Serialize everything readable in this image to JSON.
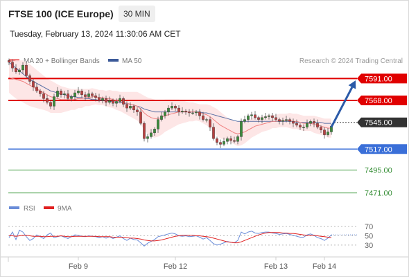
{
  "header": {
    "title": "FTSE 100 (ICE Europe)",
    "timeframe": "30 MIN",
    "timestamp": "Tuesday, February 13, 2024 11:30:06 AM CET"
  },
  "legend": {
    "items": [
      {
        "label": "MA 20 + Bollinger Bands",
        "color": "#f08080"
      },
      {
        "label": "MA 50",
        "color": "#3c5a99"
      }
    ],
    "attribution": "Research © 2024 Trading Central"
  },
  "rsi_legend": {
    "items": [
      {
        "label": "RSI",
        "color": "#6a8cd8"
      },
      {
        "label": "9MA",
        "color": "#e02020"
      }
    ]
  },
  "chart_data": [
    {
      "type": "candlestick",
      "ylim": [
        7462,
        7600
      ],
      "x_ticks": [
        {
          "label": "Feb 9",
          "index": 20
        },
        {
          "label": "Feb 12",
          "index": 48
        },
        {
          "label": "Feb 13",
          "index": 77
        },
        {
          "label": "Feb 14",
          "index": 91
        }
      ],
      "levels": [
        {
          "value": 7591.0,
          "label": "7591.00",
          "color": "#e00000",
          "style": "resistance"
        },
        {
          "value": 7568.0,
          "label": "7568.00",
          "color": "#e00000",
          "style": "resistance"
        },
        {
          "value": 7545.0,
          "label": "7545.00",
          "color": "#333333",
          "style": "last"
        },
        {
          "value": 7517.0,
          "label": "7517.00",
          "color": "#3a6fd8",
          "style": "pivot"
        },
        {
          "value": 7495.0,
          "label": "7495.00",
          "color": "#3c9a3c",
          "style": "support"
        },
        {
          "value": 7471.0,
          "label": "7471.00",
          "color": "#3c9a3c",
          "style": "support"
        }
      ],
      "projection": {
        "from": [
          93,
          7540
        ],
        "to": [
          100,
          7589
        ]
      },
      "price": [
        7608,
        7602,
        7598,
        7600,
        7605,
        7594,
        7588,
        7582,
        7578,
        7575,
        7570,
        7566,
        7562,
        7572,
        7578,
        7574,
        7575,
        7570,
        7572,
        7576,
        7578,
        7574,
        7572,
        7575,
        7573,
        7571,
        7568,
        7570,
        7566,
        7568,
        7565,
        7567,
        7570,
        7564,
        7560,
        7562,
        7558,
        7556,
        7544,
        7528,
        7530,
        7534,
        7538,
        7548,
        7552,
        7556,
        7560,
        7562,
        7560,
        7556,
        7557,
        7556,
        7555,
        7555,
        7556,
        7552,
        7548,
        7548,
        7540,
        7528,
        7524,
        7522,
        7525,
        7528,
        7526,
        7525,
        7530,
        7546,
        7548,
        7552,
        7553,
        7550,
        7548,
        7550,
        7551,
        7552,
        7550,
        7548,
        7546,
        7547,
        7548,
        7546,
        7544,
        7542,
        7540,
        7540,
        7544,
        7546,
        7544,
        7540,
        7537,
        7532,
        7535,
        7541
      ],
      "ma20": [
        7592,
        7591,
        7590,
        7589,
        7588,
        7586,
        7584,
        7582,
        7580,
        7578,
        7576,
        7574,
        7572,
        7571,
        7570,
        7569,
        7569,
        7569,
        7569,
        7569,
        7570,
        7570,
        7571,
        7571,
        7572,
        7572,
        7571,
        7571,
        7570,
        7570,
        7569,
        7568,
        7567,
        7566,
        7565,
        7564,
        7563,
        7562,
        7559,
        7555,
        7552,
        7550,
        7549,
        7549,
        7550,
        7552,
        7553,
        7554,
        7555,
        7556,
        7556,
        7556,
        7556,
        7556,
        7556,
        7555,
        7554,
        7553,
        7551,
        7548,
        7545,
        7542,
        7540,
        7538,
        7536,
        7534,
        7533,
        7534,
        7535,
        7537,
        7539,
        7541,
        7542,
        7543,
        7544,
        7545,
        7546,
        7546,
        7547,
        7547,
        7547,
        7547,
        7546,
        7546,
        7545,
        7544,
        7544,
        7544,
        7543,
        7542,
        7541,
        7540,
        7539,
        7539
      ],
      "ma50": [
        7608,
        7605,
        7602,
        7599,
        7596,
        7593,
        7590,
        7588,
        7586,
        7584,
        7582,
        7580,
        7578,
        7577,
        7576,
        7575,
        7574,
        7573,
        7572,
        7572,
        7571,
        7571,
        7570,
        7570,
        7569,
        7569,
        7568,
        7568,
        7568,
        7567,
        7567,
        7566,
        7566,
        7565,
        7565,
        7564,
        7563,
        7562,
        7561,
        7559,
        7558,
        7557,
        7556,
        7556,
        7556,
        7556,
        7556,
        7556,
        7556,
        7556,
        7556,
        7556,
        7556,
        7556,
        7556,
        7556,
        7555,
        7555,
        7554,
        7553,
        7552,
        7551,
        7550,
        7549,
        7548,
        7547,
        7546,
        7546,
        7546,
        7546,
        7546,
        7546,
        7546,
        7546,
        7546,
        7546,
        7546,
        7546,
        7546,
        7546,
        7546,
        7546,
        7546,
        7545,
        7545,
        7545,
        7545,
        7545,
        7545,
        7545,
        7545,
        7544,
        7544,
        7544
      ],
      "bb_width": [
        16,
        18,
        20,
        21,
        22,
        22,
        22,
        21,
        20,
        19,
        18,
        17,
        17,
        16,
        15,
        14,
        13,
        12,
        11,
        11,
        10,
        10,
        9,
        9,
        9,
        8,
        8,
        8,
        8,
        9,
        9,
        10,
        10,
        11,
        12,
        13,
        14,
        15,
        16,
        18,
        19,
        20,
        20,
        19,
        18,
        17,
        16,
        15,
        14,
        13,
        12,
        11,
        10,
        10,
        9,
        9,
        10,
        11,
        12,
        13,
        14,
        14,
        13,
        12,
        12,
        12,
        13,
        13,
        12,
        11,
        10,
        10,
        9,
        8,
        8,
        8,
        7,
        7,
        7,
        7,
        7,
        8,
        8,
        8,
        8,
        8,
        8,
        8,
        9,
        9,
        9,
        9,
        10,
        10
      ]
    },
    {
      "type": "line",
      "series_name": "RSI",
      "ylim": [
        15,
        85
      ],
      "y_ticks": [
        70,
        50,
        30
      ],
      "rsi": [
        46,
        58,
        42,
        62,
        58,
        48,
        40,
        44,
        52,
        48,
        44,
        52,
        56,
        46,
        48,
        50,
        47,
        44,
        48,
        52,
        51,
        49,
        48,
        50,
        49,
        48,
        46,
        48,
        45,
        48,
        44,
        47,
        50,
        44,
        40,
        45,
        42,
        41,
        35,
        28,
        34,
        38,
        42,
        48,
        50,
        52,
        54,
        56,
        54,
        50,
        49,
        50,
        48,
        49,
        50,
        47,
        43,
        46,
        40,
        33,
        30,
        32,
        35,
        38,
        36,
        35,
        40,
        58,
        54,
        58,
        60,
        56,
        55,
        57,
        58,
        58,
        56,
        55,
        53,
        54,
        55,
        53,
        51,
        49,
        47,
        47,
        52,
        54,
        51,
        46,
        44,
        40,
        45,
        52
      ],
      "ma9": [
        50,
        50,
        49,
        50,
        51,
        51,
        50,
        49,
        49,
        49,
        48,
        48,
        49,
        49,
        49,
        50,
        49,
        48,
        48,
        49,
        49,
        49,
        49,
        49,
        49,
        49,
        48,
        48,
        48,
        48,
        47,
        47,
        47,
        47,
        46,
        45,
        45,
        44,
        43,
        41,
        40,
        39,
        39,
        40,
        41,
        43,
        45,
        47,
        49,
        50,
        51,
        51,
        51,
        51,
        50,
        50,
        49,
        48,
        47,
        45,
        43,
        41,
        39,
        37,
        36,
        35,
        35,
        37,
        40,
        43,
        46,
        49,
        52,
        54,
        56,
        57,
        57,
        57,
        57,
        56,
        56,
        55,
        55,
        54,
        53,
        52,
        51,
        51,
        51,
        50,
        49,
        48,
        47,
        46
      ]
    }
  ]
}
